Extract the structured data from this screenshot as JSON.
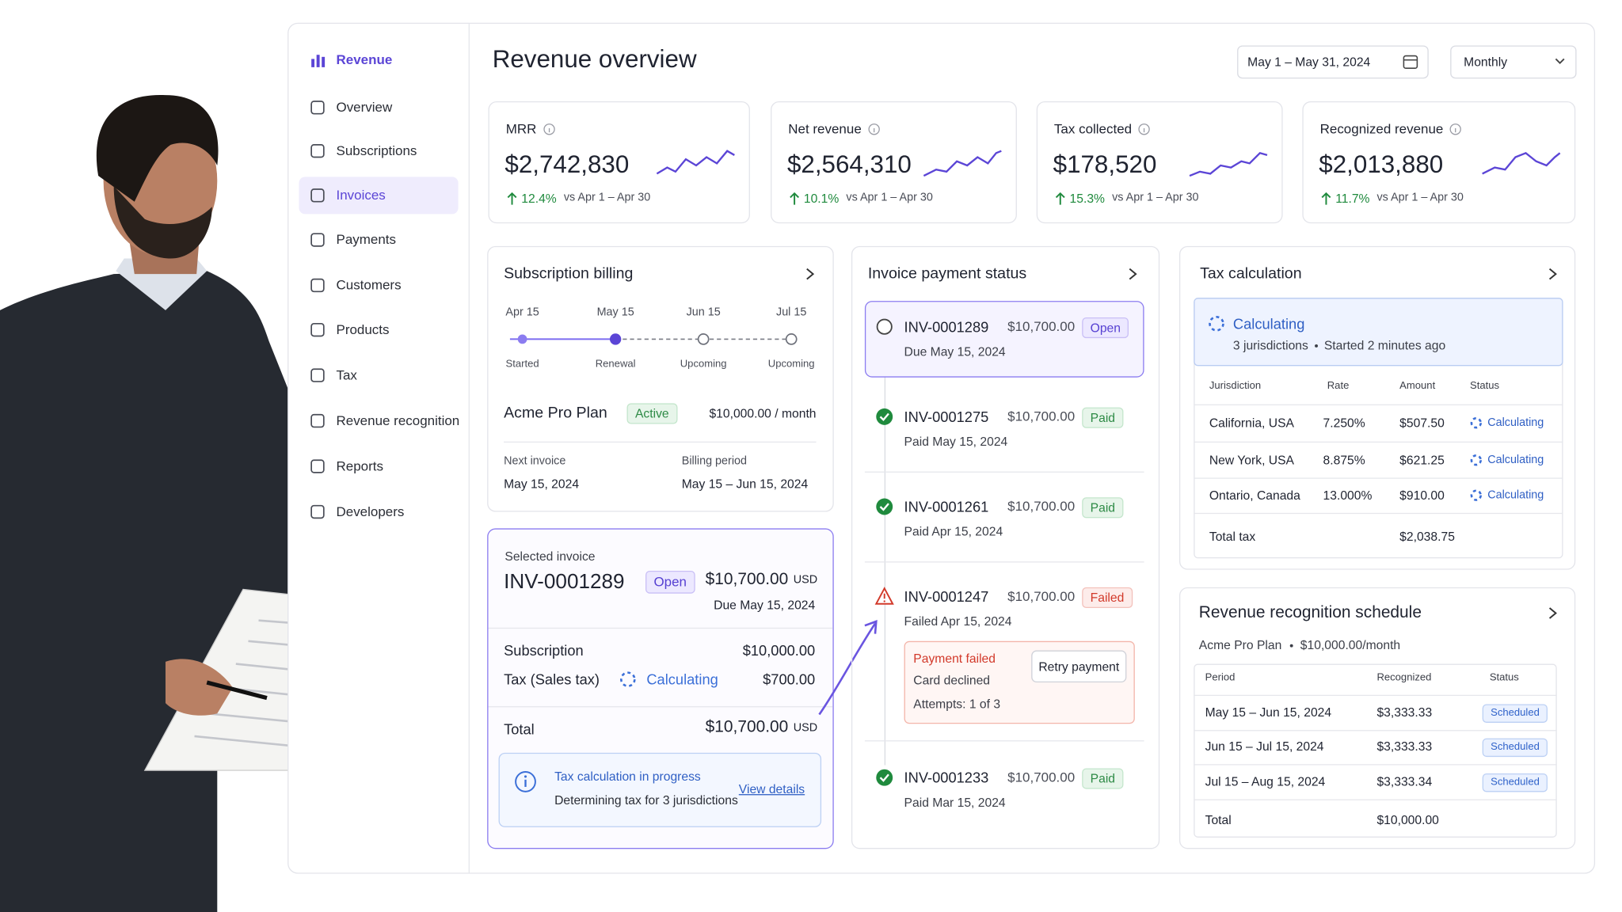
{
  "nav": [
    "Revenue",
    "Overview",
    "Subscriptions",
    "Invoices",
    "Payments",
    "Customers",
    "Products",
    "Tax",
    "Revenue recognition",
    "Reports",
    "Developers"
  ],
  "header": {
    "title": "Revenue overview",
    "date_range": "May 1 – May 31, 2024",
    "period": "Monthly"
  },
  "metrics": [
    {
      "label": "MRR",
      "value": "$2,742,830",
      "change": "12.4%",
      "compare": "vs Apr 1 – Apr 30"
    },
    {
      "label": "Net revenue",
      "value": "$2,564,310",
      "change": "10.1%",
      "compare": "vs Apr 1 – Apr 30"
    },
    {
      "label": "Tax collected",
      "value": "$178,520",
      "change": "15.3%",
      "compare": "vs Apr 1 – Apr 30"
    },
    {
      "label": "Recognized revenue",
      "value": "$2,013,880",
      "change": "11.7%",
      "compare": "vs Apr 1 – Apr 30"
    }
  ],
  "subscription_billing": {
    "title": "Subscription billing",
    "timeline": [
      {
        "date": "Apr 15",
        "label": "Started"
      },
      {
        "date": "May 15",
        "label": "Renewal"
      },
      {
        "date": "Jun 15",
        "label": "Upcoming"
      },
      {
        "date": "Jul 15",
        "label": "Upcoming"
      }
    ],
    "plan": "Acme Pro Plan",
    "status": "Active",
    "price": "$10,000.00 / month",
    "next_invoice_label": "Next invoice",
    "next_invoice": "May 15, 2024",
    "billing_period_label": "Billing period",
    "billing_period": "May 15 – Jun 15, 2024"
  },
  "selected_invoice": {
    "label": "Selected invoice",
    "id": "INV-0001289",
    "status": "Open",
    "amount": "$10,700.00",
    "currency": "USD",
    "due": "Due May 15, 2024",
    "lines": [
      {
        "label": "Subscription",
        "amount": "$10,000.00"
      },
      {
        "label": "Tax (Sales tax)",
        "status": "Calculating",
        "amount": "$700.00"
      }
    ],
    "total_label": "Total",
    "total": "$10,700.00",
    "total_currency": "USD",
    "notice_title": "Tax calculation in progress",
    "notice_text": "Determining tax for 3 jurisdictions",
    "notice_link": "View details"
  },
  "invoice_status": {
    "title": "Invoice payment status",
    "invoices": [
      {
        "id": "INV-0001289",
        "amount": "$10,700.00",
        "status": "Open",
        "date": "Due May 15, 2024"
      },
      {
        "id": "INV-0001275",
        "amount": "$10,700.00",
        "status": "Paid",
        "date": "Paid May 15, 2024"
      },
      {
        "id": "INV-0001261",
        "amount": "$10,700.00",
        "status": "Paid",
        "date": "Paid Apr 15, 2024"
      },
      {
        "id": "INV-0001247",
        "amount": "$10,700.00",
        "status": "Failed",
        "date": "Failed Apr 15, 2024"
      },
      {
        "id": "INV-0001233",
        "amount": "$10,700.00",
        "status": "Paid",
        "date": "Paid Mar 15, 2024"
      }
    ],
    "failure": {
      "title": "Payment failed",
      "reason": "Card declined",
      "attempts": "Attempts: 1 of 3",
      "action": "Retry payment"
    }
  },
  "tax_calculation": {
    "title": "Tax calculation",
    "status": "Calculating",
    "detail": "3 jurisdictions",
    "started": "Started 2 minutes ago",
    "columns": [
      "Jurisdiction",
      "Rate",
      "Amount",
      "Status"
    ],
    "rows": [
      [
        "California, USA",
        "7.250%",
        "$507.50",
        "Calculating"
      ],
      [
        "New York, USA",
        "8.875%",
        "$621.25",
        "Calculating"
      ],
      [
        "Ontario, Canada",
        "13.000%",
        "$910.00",
        "Calculating"
      ]
    ],
    "total_label": "Total tax",
    "total": "$2,038.75"
  },
  "revenue_schedule": {
    "title": "Revenue recognition schedule",
    "plan": "Acme Pro Plan",
    "price": "$10,000.00/month",
    "columns": [
      "Period",
      "Recognized",
      "Status"
    ],
    "rows": [
      [
        "May 15 – Jun 15, 2024",
        "$3,333.33",
        "Scheduled"
      ],
      [
        "Jun 15 – Jul 15, 2024",
        "$3,333.33",
        "Scheduled"
      ],
      [
        "Jul 15 – Aug 15, 2024",
        "$3,333.34",
        "Scheduled"
      ]
    ],
    "total_label": "Total",
    "total": "$10,000.00"
  }
}
